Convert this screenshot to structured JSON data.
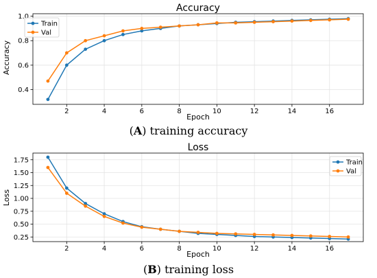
{
  "chart_data": [
    {
      "type": "line",
      "title": "Accuracy",
      "xlabel": "Epoch",
      "ylabel": "Accuracy",
      "xlim": [
        0.2,
        17.8
      ],
      "ylim": [
        0.28,
        1.02
      ],
      "xticks": [
        2,
        4,
        6,
        8,
        10,
        12,
        14,
        16
      ],
      "yticks": [
        0.4,
        0.6,
        0.8,
        1.0
      ],
      "yticklabels": [
        "0.4",
        "0.6",
        "0.8",
        "1.0"
      ],
      "grid": true,
      "legend": "top-left",
      "x": [
        1,
        2,
        3,
        4,
        5,
        6,
        7,
        8,
        9,
        10,
        11,
        12,
        13,
        14,
        15,
        16,
        17
      ],
      "series": [
        {
          "name": "Train",
          "color": "#1f77b4",
          "values": [
            0.32,
            0.6,
            0.73,
            0.8,
            0.85,
            0.88,
            0.9,
            0.92,
            0.93,
            0.94,
            0.95,
            0.955,
            0.96,
            0.965,
            0.97,
            0.975,
            0.98
          ]
        },
        {
          "name": "Val",
          "color": "#ff7f0e",
          "values": [
            0.47,
            0.7,
            0.8,
            0.84,
            0.88,
            0.9,
            0.91,
            0.92,
            0.93,
            0.945,
            0.945,
            0.95,
            0.955,
            0.96,
            0.965,
            0.97,
            0.975
          ]
        }
      ],
      "caption_label": "A",
      "caption_text": "training accuracy"
    },
    {
      "type": "line",
      "title": "Loss",
      "xlabel": "Epoch",
      "ylabel": "Loss",
      "xlim": [
        0.2,
        17.8
      ],
      "ylim": [
        0.16,
        1.88
      ],
      "xticks": [
        2,
        4,
        6,
        8,
        10,
        12,
        14,
        16
      ],
      "yticks": [
        0.25,
        0.5,
        0.75,
        1.0,
        1.25,
        1.5,
        1.75
      ],
      "yticklabels": [
        "0.25",
        "0.50",
        "0.75",
        "1.00",
        "1.25",
        "1.50",
        "1.75"
      ],
      "grid": true,
      "legend": "top-right",
      "x": [
        1,
        2,
        3,
        4,
        5,
        6,
        7,
        8,
        9,
        10,
        11,
        12,
        13,
        14,
        15,
        16,
        17
      ],
      "series": [
        {
          "name": "Train",
          "color": "#1f77b4",
          "values": [
            1.8,
            1.2,
            0.9,
            0.7,
            0.55,
            0.45,
            0.4,
            0.36,
            0.32,
            0.3,
            0.28,
            0.26,
            0.25,
            0.24,
            0.23,
            0.22,
            0.21
          ]
        },
        {
          "name": "Val",
          "color": "#ff7f0e",
          "values": [
            1.6,
            1.1,
            0.85,
            0.65,
            0.52,
            0.44,
            0.4,
            0.36,
            0.34,
            0.32,
            0.31,
            0.3,
            0.29,
            0.28,
            0.27,
            0.26,
            0.25
          ]
        }
      ],
      "caption_label": "B",
      "caption_text": "training loss"
    }
  ]
}
